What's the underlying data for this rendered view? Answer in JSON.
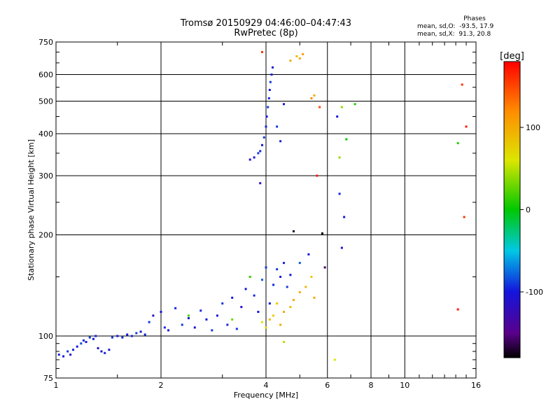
{
  "header": {
    "title": "Tromsø 20150929 04:46:00–04:47:43",
    "subtitle": "RwPretec (8p)"
  },
  "phase_box": {
    "heading": "Phases",
    "line_o": "mean, sd,O:  -93.5, 17.9",
    "line_x": "mean, sd,X:  91.3, 20.8"
  },
  "colorbar": {
    "label": "[deg]",
    "range": [
      -180,
      180
    ],
    "ticks": [
      100,
      0,
      -100
    ],
    "tick_labels": [
      "100",
      "0",
      "-100"
    ]
  },
  "chart_data": {
    "type": "scatter",
    "xlabel": "Frequency [MHz]",
    "ylabel": "Stationary phase Virtual Height [km]",
    "xscale": "log",
    "yscale": "log",
    "xlim": [
      1,
      16
    ],
    "ylim": [
      75,
      750
    ],
    "x_ticks": [
      1,
      2,
      4,
      6,
      8,
      10,
      16
    ],
    "x_tick_labels": [
      "1",
      "2",
      "4",
      "6",
      "8",
      "10",
      "16"
    ],
    "y_ticks": [
      75,
      100,
      200,
      300,
      400,
      500,
      600,
      750
    ],
    "y_tick_labels": [
      "75",
      "100",
      "200",
      "300",
      "400",
      "500",
      "600",
      "750"
    ],
    "grid": true,
    "point_color_by": "phase [deg]",
    "series": [
      {
        "points": [
          [
            1.02,
            88,
            -95
          ],
          [
            1.05,
            87,
            -100
          ],
          [
            1.08,
            90,
            -90
          ],
          [
            1.1,
            88,
            -110
          ],
          [
            1.12,
            91,
            -95
          ],
          [
            1.15,
            93,
            -100
          ],
          [
            1.18,
            95,
            -85
          ],
          [
            1.2,
            97,
            -95
          ],
          [
            1.22,
            96,
            -105
          ],
          [
            1.25,
            99,
            -90
          ],
          [
            1.28,
            98,
            -100
          ],
          [
            1.3,
            100,
            -95
          ],
          [
            1.32,
            92,
            -110
          ],
          [
            1.35,
            90,
            -100
          ],
          [
            1.38,
            89,
            -95
          ],
          [
            1.42,
            91,
            -105
          ],
          [
            1.45,
            99,
            -90
          ],
          [
            1.5,
            100,
            -100
          ],
          [
            1.55,
            99,
            -95
          ],
          [
            1.6,
            101,
            -100
          ],
          [
            1.65,
            100,
            -95
          ],
          [
            1.7,
            102,
            -90
          ],
          [
            1.75,
            103,
            -100
          ],
          [
            1.8,
            101,
            -95
          ],
          [
            1.85,
            110,
            -90
          ],
          [
            1.9,
            115,
            -110
          ],
          [
            2.0,
            118,
            -100
          ],
          [
            2.05,
            106,
            -95
          ],
          [
            2.1,
            104,
            -100
          ],
          [
            2.2,
            121,
            -95
          ],
          [
            2.3,
            108,
            -90
          ],
          [
            2.4,
            113,
            -100
          ],
          [
            2.5,
            106,
            -105
          ],
          [
            2.6,
            119,
            -95
          ],
          [
            2.7,
            112,
            -100
          ],
          [
            2.8,
            104,
            -90
          ],
          [
            2.9,
            115,
            -100
          ],
          [
            3.0,
            125,
            -90
          ],
          [
            3.1,
            108,
            -95
          ],
          [
            3.2,
            130,
            -100
          ],
          [
            3.3,
            105,
            -90
          ],
          [
            3.4,
            122,
            -110
          ],
          [
            3.5,
            138,
            -100
          ],
          [
            3.6,
            150,
            -90
          ],
          [
            3.7,
            132,
            -95
          ],
          [
            3.8,
            118,
            -100
          ],
          [
            3.9,
            147,
            -80
          ],
          [
            4.0,
            160,
            -90
          ],
          [
            4.1,
            125,
            -100
          ],
          [
            4.2,
            142,
            -95
          ],
          [
            4.3,
            158,
            -90
          ],
          [
            4.4,
            150,
            -100
          ],
          [
            4.5,
            165,
            -95
          ],
          [
            4.6,
            140,
            -90
          ],
          [
            4.7,
            152,
            -100
          ],
          [
            5.0,
            165,
            -80
          ],
          [
            5.3,
            175,
            -100
          ],
          [
            3.6,
            335,
            -110
          ],
          [
            3.7,
            340,
            -100
          ],
          [
            3.8,
            350,
            -90
          ],
          [
            3.85,
            355,
            -95
          ],
          [
            3.9,
            370,
            -100
          ],
          [
            3.95,
            390,
            -90
          ],
          [
            4.0,
            420,
            -95
          ],
          [
            4.02,
            450,
            -100
          ],
          [
            4.05,
            480,
            -90
          ],
          [
            4.08,
            510,
            -95
          ],
          [
            4.1,
            540,
            -100
          ],
          [
            4.12,
            570,
            -90
          ],
          [
            4.15,
            600,
            -95
          ],
          [
            4.18,
            630,
            -100
          ],
          [
            4.3,
            420,
            -90
          ],
          [
            4.5,
            490,
            -100
          ],
          [
            4.4,
            380,
            -95
          ],
          [
            3.85,
            285,
            -110
          ]
        ]
      },
      {
        "points": [
          [
            2.4,
            115,
            20
          ],
          [
            3.2,
            112,
            30
          ],
          [
            3.6,
            150,
            20
          ],
          [
            3.9,
            110,
            60
          ],
          [
            4.0,
            106,
            70
          ],
          [
            4.1,
            112,
            90
          ],
          [
            4.2,
            115,
            80
          ],
          [
            4.4,
            108,
            100
          ],
          [
            4.5,
            118,
            100
          ],
          [
            4.7,
            122,
            90
          ],
          [
            4.8,
            128,
            100
          ],
          [
            5.0,
            135,
            95
          ],
          [
            5.2,
            140,
            90
          ],
          [
            5.4,
            150,
            80
          ],
          [
            5.5,
            130,
            100
          ],
          [
            4.3,
            125,
            80
          ],
          [
            4.9,
            680,
            90
          ],
          [
            5.0,
            670,
            100
          ],
          [
            5.1,
            690,
            110
          ],
          [
            4.7,
            660,
            100
          ],
          [
            5.4,
            510,
            120
          ],
          [
            5.5,
            520,
            100
          ],
          [
            6.6,
            480,
            40
          ],
          [
            6.5,
            340,
            40
          ],
          [
            4.5,
            96,
            50
          ],
          [
            5.8,
            202,
            -180
          ],
          [
            7.2,
            490,
            10
          ],
          [
            6.8,
            385,
            0
          ],
          [
            14.2,
            375,
            10
          ]
        ]
      },
      {
        "points": [
          [
            5.6,
            300,
            170
          ],
          [
            5.7,
            480,
            150
          ],
          [
            3.9,
            700,
            160
          ],
          [
            6.3,
            85,
            60
          ],
          [
            14.8,
            226,
            160
          ],
          [
            15.0,
            420,
            170
          ],
          [
            14.2,
            120,
            170
          ],
          [
            14.6,
            560,
            160
          ],
          [
            6.5,
            265,
            -95
          ],
          [
            6.7,
            226,
            -100
          ],
          [
            6.6,
            183,
            -100
          ],
          [
            6.4,
            450,
            -100
          ],
          [
            4.8,
            205,
            -170
          ],
          [
            5.9,
            160,
            -160
          ]
        ]
      }
    ]
  }
}
